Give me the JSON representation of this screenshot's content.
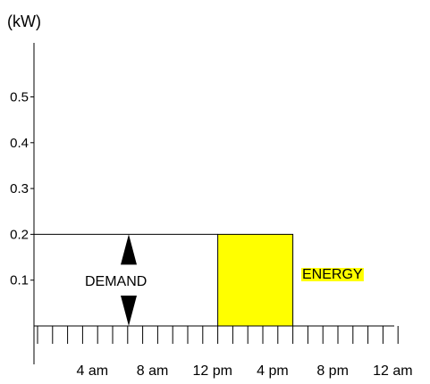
{
  "chart_data": {
    "type": "bar",
    "ylabel": "(kW)",
    "ylim": [
      0,
      0.6
    ],
    "y_ticks": [
      0.1,
      0.2,
      0.3,
      0.4,
      0.5
    ],
    "y_tick_labels": [
      "0.1",
      "0.2",
      "0.3",
      "0.4",
      "0.5"
    ],
    "xlim": [
      0,
      24
    ],
    "x_tick_labels": [
      {
        "hour": 4,
        "label": "4 am"
      },
      {
        "hour": 8,
        "label": "8 am"
      },
      {
        "hour": 12,
        "label": "12 pm"
      },
      {
        "hour": 16,
        "label": "4 pm"
      },
      {
        "hour": 20,
        "label": "8 pm"
      },
      {
        "hour": 24,
        "label": "12 am"
      }
    ],
    "energy_block": {
      "start_hour": 12,
      "end_hour": 17,
      "value": 0.2,
      "color": "#ffff00"
    },
    "demand_level": 0.2,
    "annotations": {
      "demand": "DEMAND",
      "energy": "ENERGY"
    },
    "energy_label_highlight": "#ffff00",
    "grid": false
  }
}
